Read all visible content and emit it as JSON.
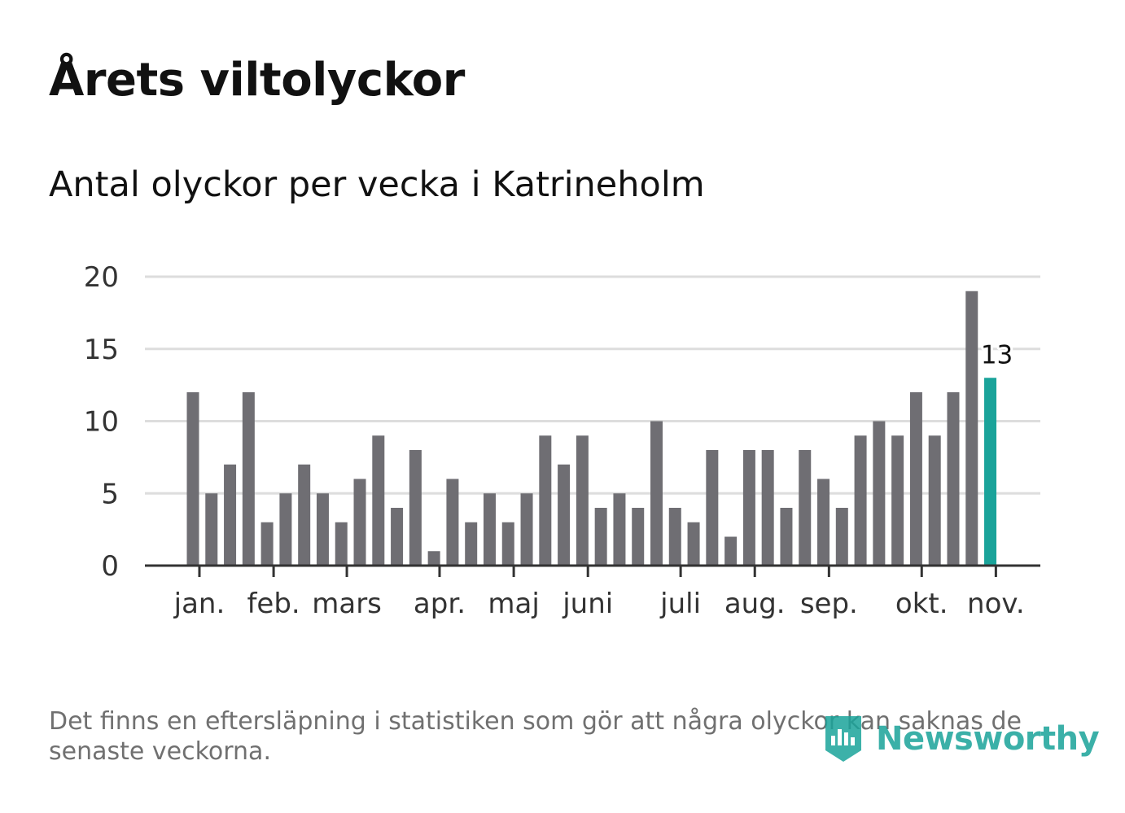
{
  "header": {
    "title": "Årets viltolyckor",
    "subtitle": "Antal olyckor per vecka i Katrineholm"
  },
  "footer": {
    "note": "Det finns en eftersläpning i statistiken som gör att några olyckor kan saknas de senaste veckorna.",
    "brand": "Newsworthy"
  },
  "colors": {
    "bar": "#6f6e73",
    "highlight": "#1aa39a",
    "grid": "#dddddd",
    "axis": "#333333",
    "text": "#111111",
    "muted": "#707070"
  },
  "chart_data": {
    "type": "bar",
    "title": "Antal olyckor per vecka i Katrineholm",
    "xlabel": "",
    "ylabel": "",
    "ylim": [
      0,
      20
    ],
    "yticks": [
      0,
      5,
      10,
      15,
      20
    ],
    "grid": true,
    "values": [
      12,
      5,
      7,
      12,
      3,
      5,
      7,
      5,
      3,
      6,
      9,
      4,
      8,
      1,
      6,
      3,
      5,
      3,
      5,
      9,
      7,
      9,
      4,
      5,
      4,
      10,
      4,
      3,
      8,
      2,
      8,
      8,
      4,
      8,
      6,
      4,
      9,
      10,
      9,
      12,
      9,
      12,
      19,
      13
    ],
    "highlight_index": 43,
    "highlight_label": "13",
    "month_ticks": [
      {
        "label": "jan.",
        "week": 0.35
      },
      {
        "label": "feb.",
        "week": 4.35
      },
      {
        "label": "mars",
        "week": 8.3
      },
      {
        "label": "apr.",
        "week": 13.3
      },
      {
        "label": "maj",
        "week": 17.3
      },
      {
        "label": "juni",
        "week": 21.3
      },
      {
        "label": "juli",
        "week": 26.3
      },
      {
        "label": "aug.",
        "week": 30.3
      },
      {
        "label": "sep.",
        "week": 34.3
      },
      {
        "label": "okt.",
        "week": 39.3
      },
      {
        "label": "nov.",
        "week": 43.3
      }
    ]
  }
}
